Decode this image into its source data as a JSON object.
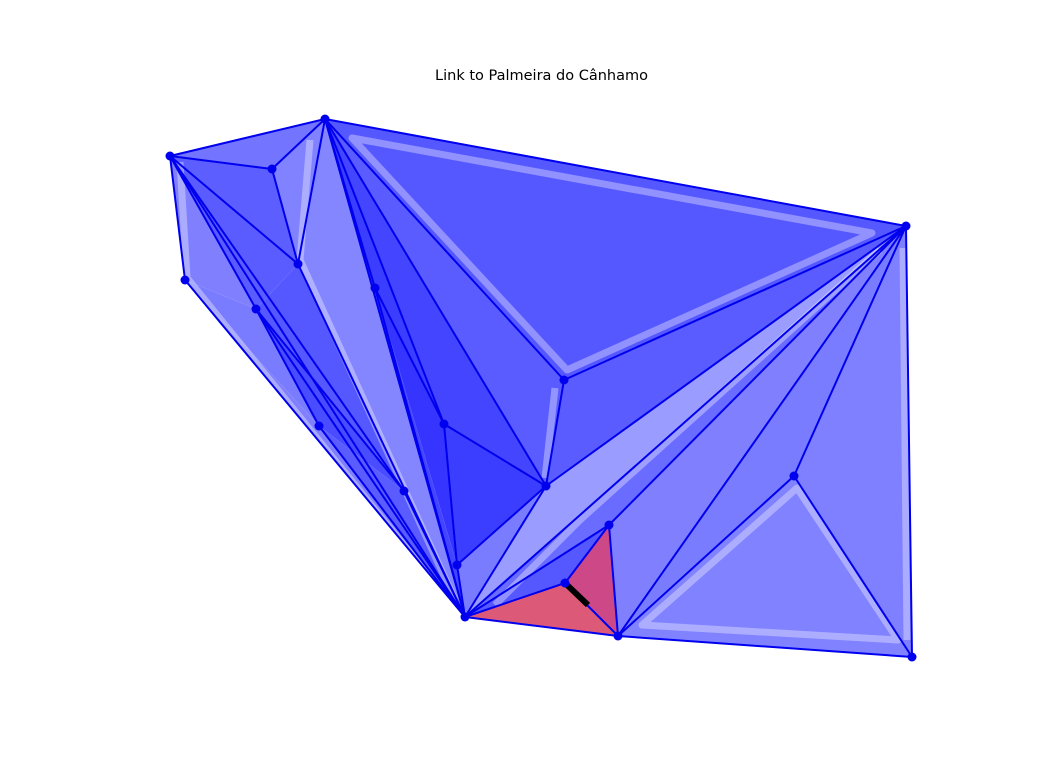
{
  "title": "Link to Palmeira do Cânhamo",
  "colors": {
    "edge": "#0000ee",
    "vertex": "#0000ee",
    "highlight_fill": "#d6336c",
    "highlight_edge_fill": "#ef4b4b",
    "link_segment": "#000000"
  }
}
